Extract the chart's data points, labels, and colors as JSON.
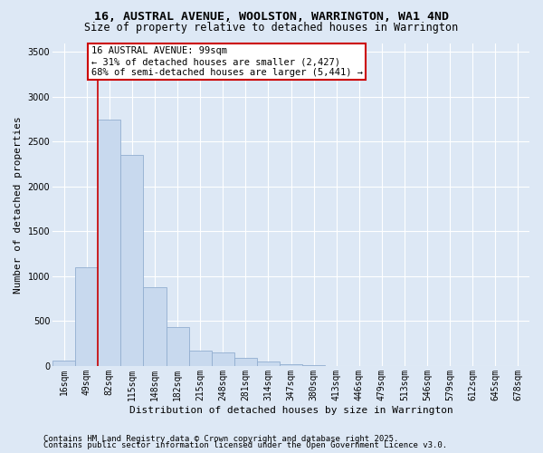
{
  "title_line1": "16, AUSTRAL AVENUE, WOOLSTON, WARRINGTON, WA1 4ND",
  "title_line2": "Size of property relative to detached houses in Warrington",
  "xlabel": "Distribution of detached houses by size in Warrington",
  "ylabel": "Number of detached properties",
  "bar_color": "#c8d9ee",
  "bar_edge_color": "#92aed0",
  "categories": [
    "16sqm",
    "49sqm",
    "82sqm",
    "115sqm",
    "148sqm",
    "182sqm",
    "215sqm",
    "248sqm",
    "281sqm",
    "314sqm",
    "347sqm",
    "380sqm",
    "413sqm",
    "446sqm",
    "479sqm",
    "513sqm",
    "546sqm",
    "579sqm",
    "612sqm",
    "645sqm",
    "678sqm"
  ],
  "values": [
    60,
    1100,
    2750,
    2350,
    875,
    430,
    175,
    155,
    95,
    50,
    20,
    8,
    4,
    2,
    1,
    0,
    0,
    0,
    0,
    0,
    0
  ],
  "ylim": [
    0,
    3600
  ],
  "yticks": [
    0,
    500,
    1000,
    1500,
    2000,
    2500,
    3000,
    3500
  ],
  "vline_bin_index": 2,
  "annotation_text": "16 AUSTRAL AVENUE: 99sqm\n← 31% of detached houses are smaller (2,427)\n68% of semi-detached houses are larger (5,441) →",
  "annotation_box_facecolor": "#ffffff",
  "annotation_box_edgecolor": "#cc0000",
  "vline_color": "#cc0000",
  "footnote_line1": "Contains HM Land Registry data © Crown copyright and database right 2025.",
  "footnote_line2": "Contains public sector information licensed under the Open Government Licence v3.0.",
  "background_color": "#dde8f5",
  "plot_bg_color": "#dde8f5",
  "grid_color": "#ffffff",
  "title_fontsize": 9.5,
  "subtitle_fontsize": 8.5,
  "ylabel_fontsize": 8,
  "xlabel_fontsize": 8,
  "tick_fontsize": 7,
  "annotation_fontsize": 7.5,
  "footnote_fontsize": 6.5
}
